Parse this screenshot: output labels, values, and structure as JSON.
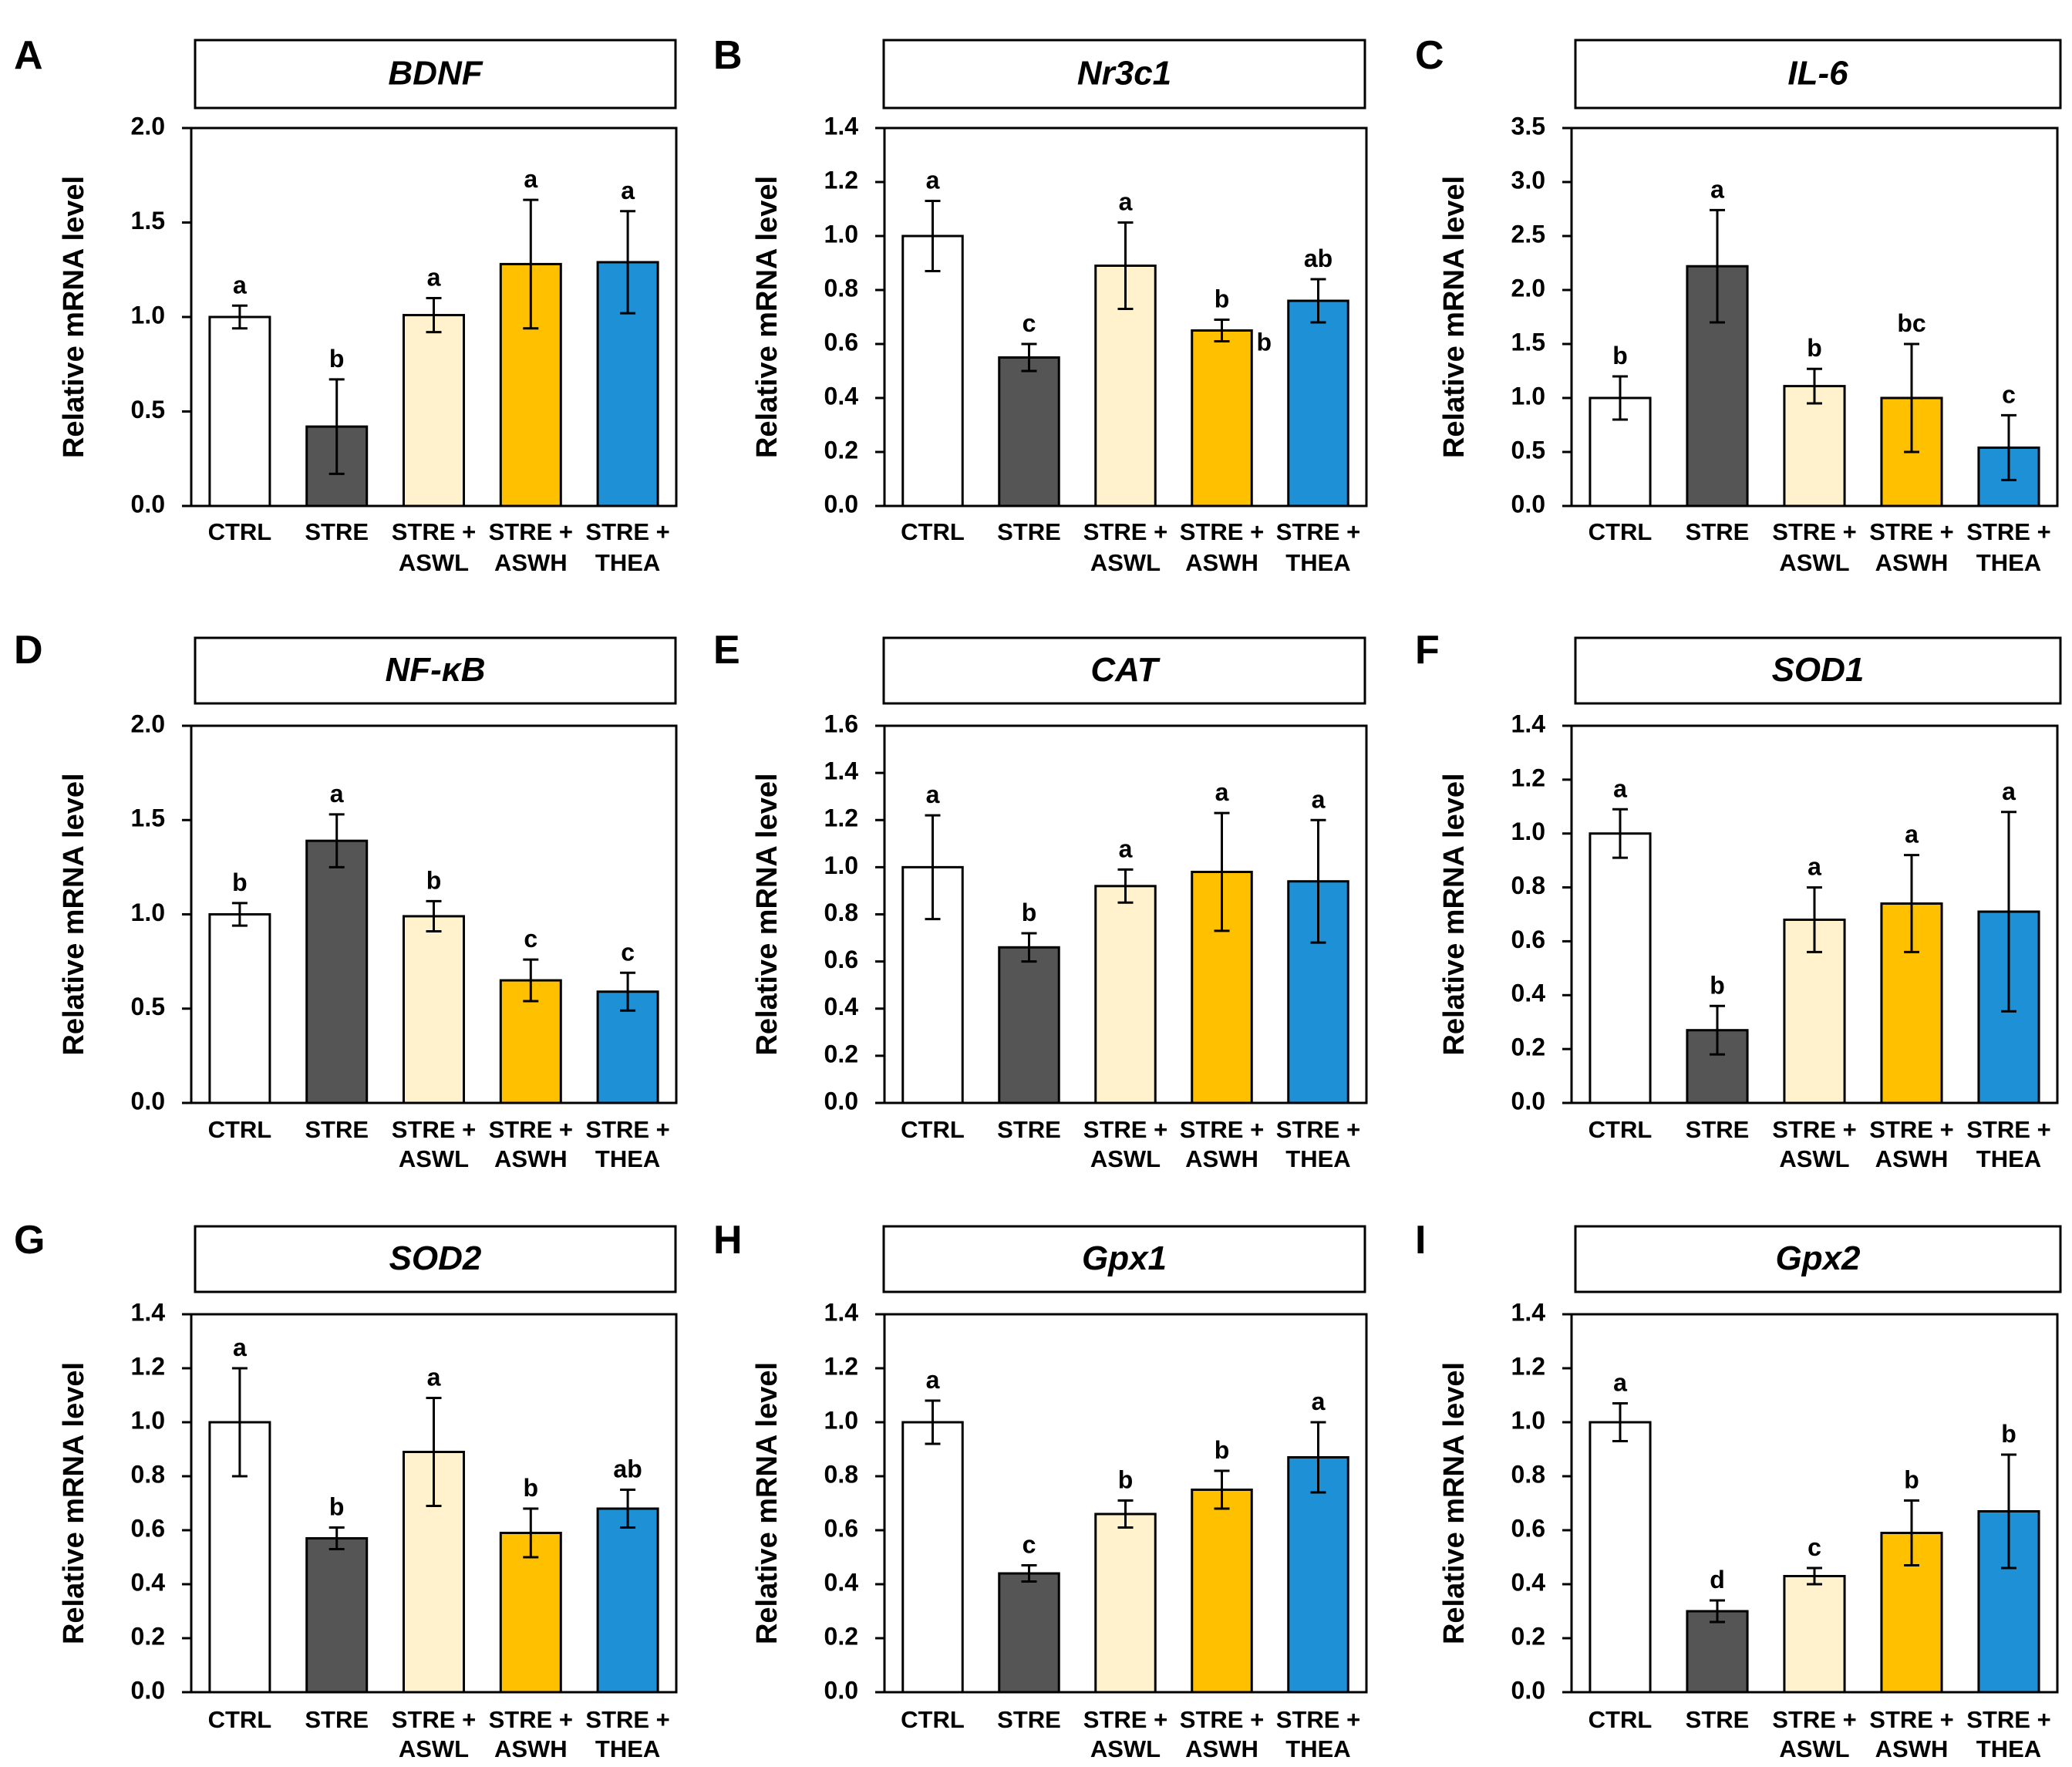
{
  "figure_id": "",
  "colors": {
    "CTRL": "#ffffff",
    "STRE": "#555555",
    "STRE + ASWL": "#fff2cc",
    "STRE + ASWH": "#ffc000",
    "STRE + THEA": "#1e90d6"
  },
  "chart_data": [
    {
      "panel": "A",
      "type": "bar",
      "title": "BDNF",
      "ylabel": "Relative mRNA level",
      "xlabel": "",
      "categories": [
        [
          "CTRL"
        ],
        [
          "STRE"
        ],
        [
          "STRE +",
          "ASWL"
        ],
        [
          "STRE +",
          "ASWH"
        ],
        [
          "STRE +",
          "THEA"
        ]
      ],
      "values": [
        1.0,
        0.42,
        1.01,
        1.28,
        1.29
      ],
      "errors": [
        0.06,
        0.25,
        0.09,
        0.34,
        0.27
      ],
      "labels": [
        "a",
        "b",
        "a",
        "a",
        "a"
      ],
      "ylim": [
        0,
        2.0
      ],
      "yticks": [
        "0.0",
        "0.5",
        "1.0",
        "1.5",
        "2.0"
      ]
    },
    {
      "panel": "B",
      "type": "bar",
      "title": "Nr3c1",
      "ylabel": "Relative mRNA level",
      "xlabel": "",
      "categories": [
        [
          "CTRL"
        ],
        [
          "STRE"
        ],
        [
          "STRE +",
          "ASWL"
        ],
        [
          "STRE +",
          "ASWH"
        ],
        [
          "STRE +",
          "THEA"
        ]
      ],
      "values": [
        1.0,
        0.55,
        0.89,
        0.65,
        0.76
      ],
      "errors": [
        0.13,
        0.05,
        0.16,
        0.04,
        0.08
      ],
      "labels": [
        "a",
        "c",
        "a",
        "b",
        "ab"
      ],
      "extra_labels": [
        "",
        "",
        "",
        "b",
        ""
      ],
      "ylim": [
        0,
        1.4
      ],
      "yticks": [
        "0.0",
        "0.2",
        "0.4",
        "0.6",
        "0.8",
        "1.0",
        "1.2",
        "1.4"
      ]
    },
    {
      "panel": "C",
      "type": "bar",
      "title": "IL-6",
      "ylabel": "Relative mRNA level",
      "xlabel": "",
      "categories": [
        [
          "CTRL"
        ],
        [
          "STRE"
        ],
        [
          "STRE +",
          "ASWL"
        ],
        [
          "STRE +",
          "ASWH"
        ],
        [
          "STRE +",
          "THEA"
        ]
      ],
      "values": [
        1.0,
        2.22,
        1.11,
        1.0,
        0.54
      ],
      "errors": [
        0.2,
        0.52,
        0.16,
        0.5,
        0.3
      ],
      "labels": [
        "b",
        "a",
        "b",
        "bc",
        "c"
      ],
      "ylim": [
        0,
        3.5
      ],
      "yticks": [
        "0.0",
        "0.5",
        "1.0",
        "1.5",
        "2.0",
        "2.5",
        "3.0",
        "3.5"
      ]
    },
    {
      "panel": "D",
      "type": "bar",
      "title": "NF-κB",
      "ylabel": "Relative mRNA level",
      "xlabel": "",
      "categories": [
        [
          "CTRL"
        ],
        [
          "STRE"
        ],
        [
          "STRE +",
          "ASWL"
        ],
        [
          "STRE +",
          "ASWH"
        ],
        [
          "STRE +",
          "THEA"
        ]
      ],
      "values": [
        1.0,
        1.39,
        0.99,
        0.65,
        0.59
      ],
      "errors": [
        0.06,
        0.14,
        0.08,
        0.11,
        0.1
      ],
      "labels": [
        "b",
        "a",
        "b",
        "c",
        "c"
      ],
      "ylim": [
        0,
        2.0
      ],
      "yticks": [
        "0.0",
        "0.5",
        "1.0",
        "1.5",
        "2.0"
      ]
    },
    {
      "panel": "E",
      "type": "bar",
      "title": "CAT",
      "ylabel": "Relative mRNA level",
      "xlabel": "",
      "categories": [
        [
          "CTRL"
        ],
        [
          "STRE"
        ],
        [
          "STRE +",
          "ASWL"
        ],
        [
          "STRE +",
          "ASWH"
        ],
        [
          "STRE +",
          "THEA"
        ]
      ],
      "values": [
        1.0,
        0.66,
        0.92,
        0.98,
        0.94
      ],
      "errors": [
        0.22,
        0.06,
        0.07,
        0.25,
        0.26
      ],
      "labels": [
        "a",
        "b",
        "a",
        "a",
        "a"
      ],
      "ylim": [
        0,
        1.6
      ],
      "yticks": [
        "0.0",
        "0.2",
        "0.4",
        "0.6",
        "0.8",
        "1.0",
        "1.2",
        "1.4",
        "1.6"
      ]
    },
    {
      "panel": "F",
      "type": "bar",
      "title": "SOD1",
      "ylabel": "Relative mRNA level",
      "xlabel": "",
      "categories": [
        [
          "CTRL"
        ],
        [
          "STRE"
        ],
        [
          "STRE +",
          "ASWL"
        ],
        [
          "STRE +",
          "ASWH"
        ],
        [
          "STRE +",
          "THEA"
        ]
      ],
      "values": [
        1.0,
        0.27,
        0.68,
        0.74,
        0.71
      ],
      "errors": [
        0.09,
        0.09,
        0.12,
        0.18,
        0.37
      ],
      "labels": [
        "a",
        "b",
        "a",
        "a",
        "a"
      ],
      "ylim": [
        0,
        1.4
      ],
      "yticks": [
        "0.0",
        "0.2",
        "0.4",
        "0.6",
        "0.8",
        "1.0",
        "1.2",
        "1.4"
      ]
    },
    {
      "panel": "G",
      "type": "bar",
      "title": "SOD2",
      "ylabel": "Relative mRNA level",
      "xlabel": "",
      "categories": [
        [
          "CTRL"
        ],
        [
          "STRE"
        ],
        [
          "STRE +",
          "ASWL"
        ],
        [
          "STRE +",
          "ASWH"
        ],
        [
          "STRE +",
          "THEA"
        ]
      ],
      "values": [
        1.0,
        0.57,
        0.89,
        0.59,
        0.68
      ],
      "errors": [
        0.2,
        0.04,
        0.2,
        0.09,
        0.07
      ],
      "labels": [
        "a",
        "b",
        "a",
        "b",
        "ab"
      ],
      "ylim": [
        0,
        1.4
      ],
      "yticks": [
        "0.0",
        "0.2",
        "0.4",
        "0.6",
        "0.8",
        "1.0",
        "1.2",
        "1.4"
      ]
    },
    {
      "panel": "H",
      "type": "bar",
      "title": "Gpx1",
      "ylabel": "Relative mRNA level",
      "xlabel": "",
      "categories": [
        [
          "CTRL"
        ],
        [
          "STRE"
        ],
        [
          "STRE +",
          "ASWL"
        ],
        [
          "STRE +",
          "ASWH"
        ],
        [
          "STRE +",
          "THEA"
        ]
      ],
      "values": [
        1.0,
        0.44,
        0.66,
        0.75,
        0.87
      ],
      "errors": [
        0.08,
        0.03,
        0.05,
        0.07,
        0.13
      ],
      "labels": [
        "a",
        "c",
        "b",
        "b",
        "a"
      ],
      "ylim": [
        0,
        1.4
      ],
      "yticks": [
        "0.0",
        "0.2",
        "0.4",
        "0.6",
        "0.8",
        "1.0",
        "1.2",
        "1.4"
      ]
    },
    {
      "panel": "I",
      "type": "bar",
      "title": "Gpx2",
      "ylabel": "Relative mRNA level",
      "xlabel": "",
      "categories": [
        [
          "CTRL"
        ],
        [
          "STRE"
        ],
        [
          "STRE +",
          "ASWL"
        ],
        [
          "STRE +",
          "ASWH"
        ],
        [
          "STRE +",
          "THEA"
        ]
      ],
      "values": [
        1.0,
        0.3,
        0.43,
        0.59,
        0.67
      ],
      "errors": [
        0.07,
        0.04,
        0.03,
        0.12,
        0.21
      ],
      "labels": [
        "a",
        "d",
        "c",
        "b",
        "b"
      ],
      "ylim": [
        0,
        1.4
      ],
      "yticks": [
        "0.0",
        "0.2",
        "0.4",
        "0.6",
        "0.8",
        "1.0",
        "1.2",
        "1.4"
      ]
    }
  ]
}
